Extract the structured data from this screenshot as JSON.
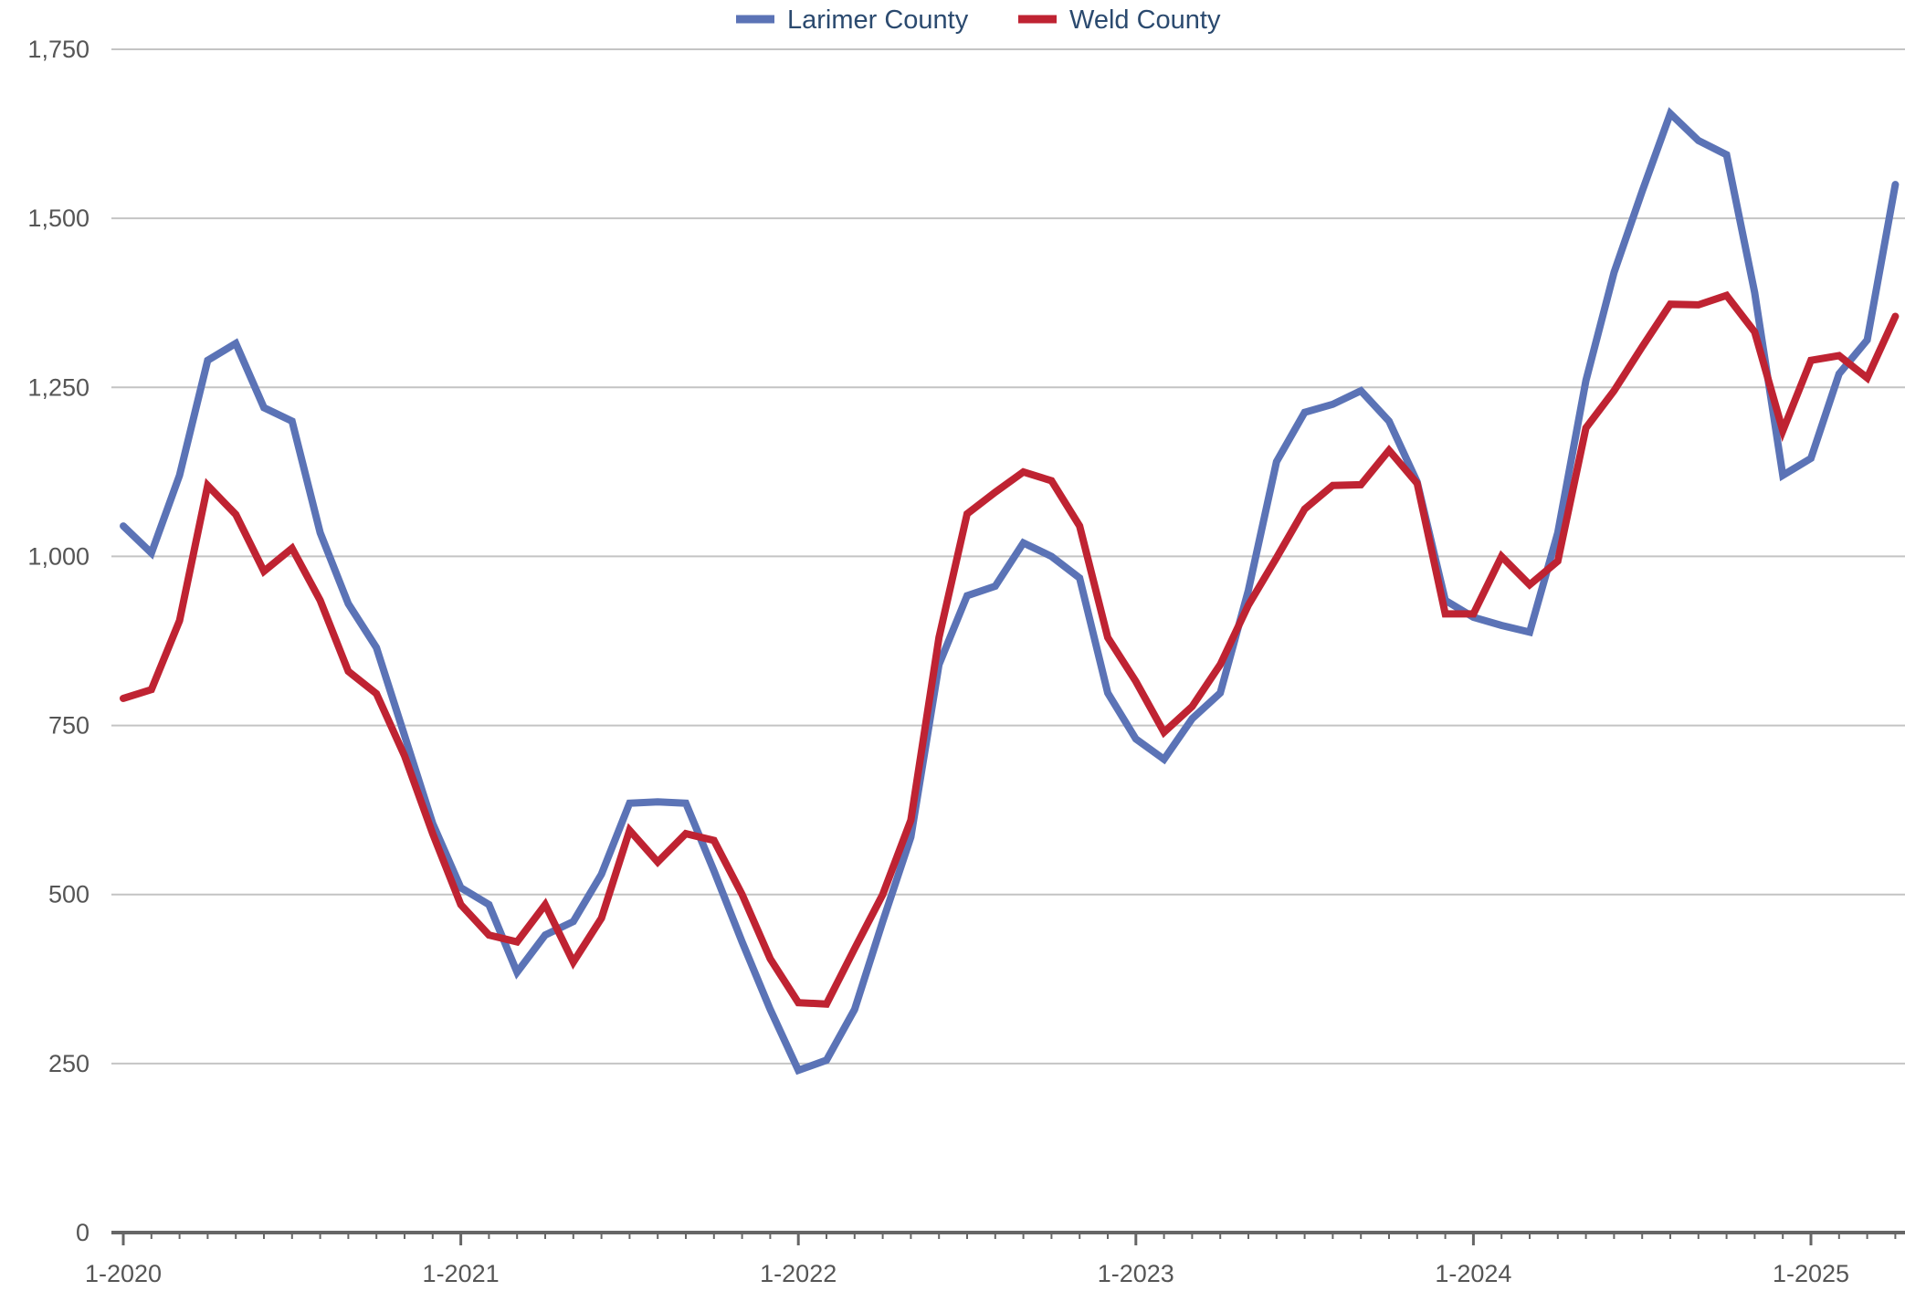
{
  "chart_data": {
    "type": "line",
    "title": "",
    "xlabel": "",
    "ylabel": "",
    "ylim": [
      0,
      1750
    ],
    "yticks": [
      {
        "value": 0,
        "label": "0"
      },
      {
        "value": 250,
        "label": "250"
      },
      {
        "value": 500,
        "label": "500"
      },
      {
        "value": 750,
        "label": "750"
      },
      {
        "value": 1000,
        "label": "1,000"
      },
      {
        "value": 1250,
        "label": "1,250"
      },
      {
        "value": 1500,
        "label": "1,500"
      },
      {
        "value": 1750,
        "label": "1,750"
      }
    ],
    "xticks": [
      {
        "index": 0,
        "label": "1-2020"
      },
      {
        "index": 12,
        "label": "1-2021"
      },
      {
        "index": 24,
        "label": "1-2022"
      },
      {
        "index": 36,
        "label": "1-2023"
      },
      {
        "index": 48,
        "label": "1-2024"
      },
      {
        "index": 60,
        "label": "1-2025"
      }
    ],
    "grid": true,
    "legend_position": "top-center",
    "x": [
      "2020-01",
      "2020-02",
      "2020-03",
      "2020-04",
      "2020-05",
      "2020-06",
      "2020-07",
      "2020-08",
      "2020-09",
      "2020-10",
      "2020-11",
      "2020-12",
      "2021-01",
      "2021-02",
      "2021-03",
      "2021-04",
      "2021-05",
      "2021-06",
      "2021-07",
      "2021-08",
      "2021-09",
      "2021-10",
      "2021-11",
      "2021-12",
      "2022-01",
      "2022-02",
      "2022-03",
      "2022-04",
      "2022-05",
      "2022-06",
      "2022-07",
      "2022-08",
      "2022-09",
      "2022-10",
      "2022-11",
      "2022-12",
      "2023-01",
      "2023-02",
      "2023-03",
      "2023-04",
      "2023-05",
      "2023-06",
      "2023-07",
      "2023-08",
      "2023-09",
      "2023-10",
      "2023-11",
      "2023-12",
      "2024-01",
      "2024-02",
      "2024-03",
      "2024-04",
      "2024-05",
      "2024-06",
      "2024-07",
      "2024-08",
      "2024-09",
      "2024-10",
      "2024-11",
      "2024-12",
      "2025-01",
      "2025-02",
      "2025-03",
      "2025-04"
    ],
    "series": [
      {
        "name": "Larimer County",
        "color": "#5b73b6",
        "values": [
          1045,
          1005,
          1120,
          1290,
          1315,
          1220,
          1200,
          1035,
          930,
          865,
          735,
          605,
          510,
          485,
          385,
          440,
          460,
          530,
          635,
          637,
          635,
          535,
          430,
          330,
          240,
          255,
          330,
          460,
          585,
          840,
          942,
          956,
          1020,
          1000,
          968,
          798,
          730,
          700,
          760,
          798,
          950,
          1140,
          1213,
          1225,
          1245,
          1200,
          1110,
          935,
          910,
          898,
          888,
          1035,
          1260,
          1420,
          1540,
          1655,
          1615,
          1594,
          1390,
          1120,
          1145,
          1270,
          1320,
          1550
        ]
      },
      {
        "name": "Weld County",
        "color": "#bf2332",
        "values": [
          790,
          803,
          905,
          1105,
          1062,
          978,
          1012,
          935,
          830,
          797,
          705,
          590,
          485,
          440,
          430,
          485,
          400,
          465,
          595,
          548,
          590,
          580,
          500,
          405,
          340,
          338,
          420,
          500,
          610,
          880,
          1063,
          1095,
          1125,
          1112,
          1045,
          880,
          815,
          740,
          778,
          840,
          928,
          998,
          1070,
          1105,
          1106,
          1157,
          1108,
          915,
          915,
          1000,
          958,
          993,
          1190,
          1245,
          1310,
          1373,
          1372,
          1386,
          1332,
          1186,
          1290,
          1297,
          1264,
          1355
        ]
      }
    ]
  }
}
